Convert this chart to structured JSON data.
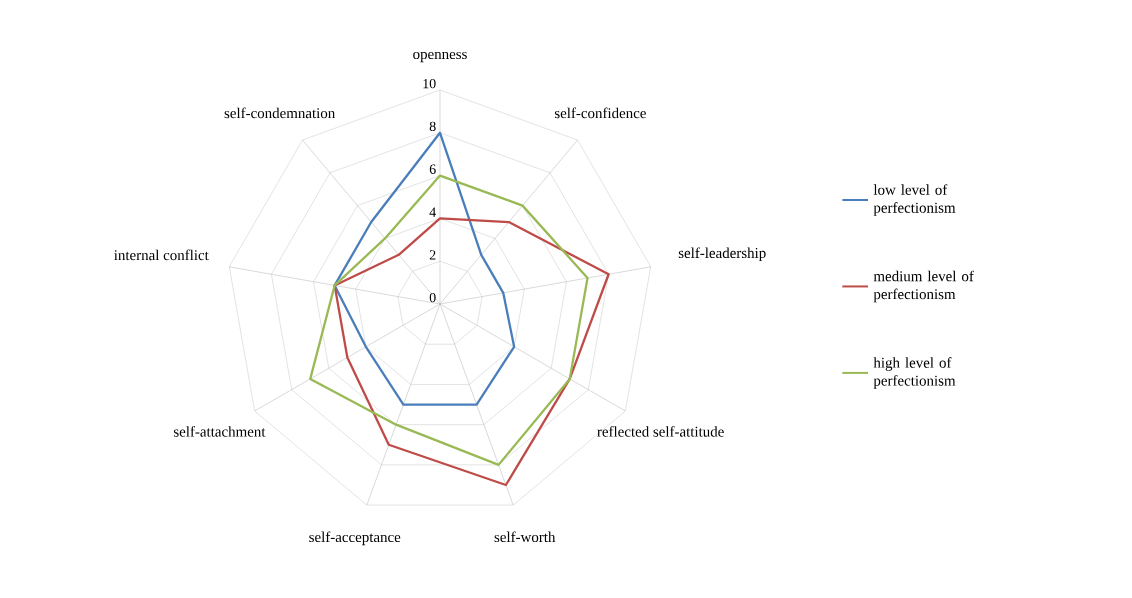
{
  "chart_data": {
    "type": "radar",
    "categories": [
      "openness",
      "self-confidence",
      "self-leadership",
      "reflected self-attitude",
      "self-worth",
      "self-acceptance",
      "self-attachment",
      "internal conflict",
      "self-condemnation"
    ],
    "series": [
      {
        "name": "low level of perfectionism",
        "color": "#4a7ebb",
        "values": [
          8,
          3,
          3,
          4,
          5,
          5,
          4,
          5,
          5
        ]
      },
      {
        "name": "medium level of perfectionism",
        "color": "#be4b48",
        "values": [
          4,
          5,
          8,
          7,
          9,
          7,
          5,
          5,
          3
        ]
      },
      {
        "name": "high level of perfectionism",
        "color": "#98b954",
        "values": [
          6,
          6,
          7,
          7,
          8,
          6,
          7,
          5,
          4
        ]
      }
    ],
    "ylim": [
      0,
      10
    ],
    "yticks": [
      0,
      2,
      4,
      6,
      8,
      10
    ],
    "grid": true,
    "legend": "right"
  }
}
